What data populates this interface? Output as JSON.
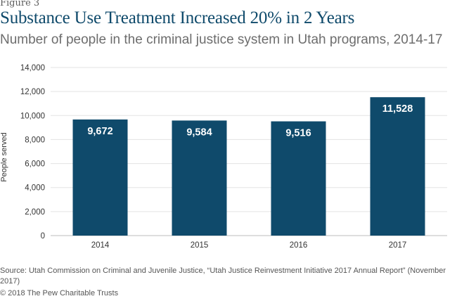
{
  "figure_label": "Figure 3",
  "title": "Substance Use Treatment Increased 20% in 2 Years",
  "subtitle": "Number of people in the criminal justice system in Utah programs, 2014-17",
  "source": "Source: Utah Commission on Criminal and Juvenile Justice, “Utah Justice Reinvestment Initiative 2017 Annual Report” (November 2017)",
  "copyright": "© 2018 The Pew Charitable Trusts",
  "colors": {
    "bar": "#0f4a6b",
    "bar_label": "#ffffff",
    "title": "#0f4a6b",
    "gridline": "#e3e3e3",
    "axis_text": "#333333"
  },
  "chart_data": {
    "type": "bar",
    "categories": [
      "2014",
      "2015",
      "2016",
      "2017"
    ],
    "values": [
      9672,
      9584,
      9516,
      11528
    ],
    "value_labels": [
      "9,672",
      "9,584",
      "9,516",
      "11,528"
    ],
    "ylabel": "People served",
    "xlabel": "",
    "ylim": [
      0,
      14000
    ],
    "yticks": [
      0,
      2000,
      4000,
      6000,
      8000,
      10000,
      12000,
      14000
    ],
    "ytick_labels": [
      "0",
      "2,000",
      "4,000",
      "6,000",
      "8,000",
      "10,000",
      "12,000",
      "14,000"
    ],
    "grid": true
  }
}
